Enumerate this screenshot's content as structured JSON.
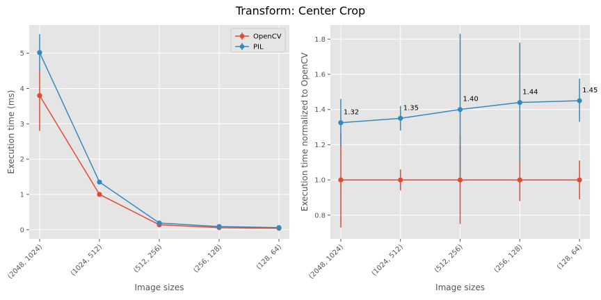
{
  "figure_title": "Transform: Center Crop",
  "colors": {
    "opencv": "#E24A33",
    "pil": "#348ABD",
    "panel_bg": "#E5E5E5",
    "grid": "#FFFFFF",
    "tick_text": "#555555"
  },
  "chart_data": [
    {
      "type": "line",
      "xlabel": "Image sizes",
      "ylabel": "Execution time (ms)",
      "categories": [
        "(2048, 1024)",
        "(1024, 512)",
        "(512, 256)",
        "(256, 128)",
        "(128, 64)"
      ],
      "ylim": [
        -0.26,
        5.8
      ],
      "yticks": [
        "0",
        "1",
        "2",
        "3",
        "4",
        "5"
      ],
      "grid": true,
      "legend": "top-right",
      "series": [
        {
          "name": "OpenCV",
          "color": "#E24A33",
          "values": [
            3.8,
            1.0,
            0.14,
            0.06,
            0.04
          ],
          "err_low": [
            1.0,
            0.03,
            0.02,
            0.01,
            0.01
          ],
          "err_high": [
            0.75,
            0.03,
            0.02,
            0.01,
            0.01
          ]
        },
        {
          "name": "PIL",
          "color": "#348ABD",
          "values": [
            5.02,
            1.35,
            0.19,
            0.09,
            0.06
          ],
          "err_low": [
            0.5,
            0.03,
            0.02,
            0.01,
            0.01
          ],
          "err_high": [
            0.52,
            0.03,
            0.02,
            0.01,
            0.01
          ]
        }
      ]
    },
    {
      "type": "line",
      "xlabel": "Image sizes",
      "ylabel": "Execution time normalized to OpenCV",
      "categories": [
        "(2048, 1024)",
        "(1024, 512)",
        "(512, 256)",
        "(256, 128)",
        "(128, 64)"
      ],
      "ylim": [
        0.665,
        1.88
      ],
      "yticks": [
        "0.8",
        "1.0",
        "1.2",
        "1.4",
        "1.6",
        "1.8"
      ],
      "grid": true,
      "data_labels": [
        "1.32",
        "1.35",
        "1.40",
        "1.44",
        "1.45"
      ],
      "series": [
        {
          "name": "OpenCV",
          "color": "#E24A33",
          "values": [
            1.0,
            1.0,
            1.0,
            1.0,
            1.0
          ],
          "err_low": [
            0.27,
            0.06,
            0.25,
            0.12,
            0.11
          ],
          "err_high": [
            0.27,
            0.06,
            0.25,
            0.12,
            0.11
          ]
        },
        {
          "name": "PIL",
          "color": "#348ABD",
          "values": [
            1.325,
            1.35,
            1.4,
            1.44,
            1.45
          ],
          "err_low": [
            0.135,
            0.07,
            0.38,
            0.33,
            0.12
          ],
          "err_high": [
            0.135,
            0.07,
            0.43,
            0.34,
            0.125
          ]
        }
      ]
    }
  ]
}
